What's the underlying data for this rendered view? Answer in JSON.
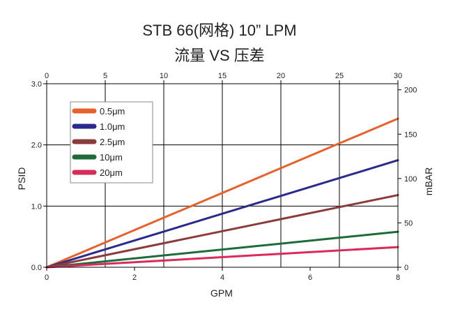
{
  "chart_data": {
    "type": "line",
    "title": "STB 66(网格)  10”   LPM",
    "subtitle": "流量 VS 压差",
    "xlabel": "GPM",
    "ylabel": "PSID",
    "y2label": "mBAR",
    "xlim": [
      0,
      8
    ],
    "ylim": [
      0,
      3
    ],
    "x2lim": [
      0,
      30
    ],
    "y2lim": [
      0,
      206.84
    ],
    "x_ticks": [
      0,
      2,
      4,
      6,
      8
    ],
    "x_tick_labels": [
      "0",
      "2",
      "4",
      "6",
      "8"
    ],
    "y_ticks": [
      0,
      1,
      2,
      3
    ],
    "y_tick_labels": [
      "0.0",
      "1.0",
      "2.0",
      "3.0"
    ],
    "x2_ticks": [
      0,
      5,
      10,
      15,
      20,
      25,
      30
    ],
    "x2_tick_labels": [
      "0",
      "5",
      "10",
      "15",
      "20",
      "25",
      "30"
    ],
    "y2_ticks": [
      0,
      50,
      100,
      150,
      200
    ],
    "y2_tick_labels": [
      "0",
      "50",
      "100",
      "150",
      "200"
    ],
    "grid": true,
    "legend_position": "top-left",
    "series": [
      {
        "name": "0.5μm",
        "color": "#e8612c",
        "x": [
          0,
          8
        ],
        "y": [
          0,
          2.43
        ]
      },
      {
        "name": "1.0μm",
        "color": "#2a2a8c",
        "x": [
          0,
          8
        ],
        "y": [
          0,
          1.75
        ]
      },
      {
        "name": "2.5μm",
        "color": "#8b3b3b",
        "x": [
          0,
          8
        ],
        "y": [
          0,
          1.18
        ]
      },
      {
        "name": "10μm",
        "color": "#1e6b3a",
        "x": [
          0,
          8
        ],
        "y": [
          0,
          0.58
        ]
      },
      {
        "name": "20μm",
        "color": "#d92a5c",
        "x": [
          0,
          8
        ],
        "y": [
          0,
          0.33
        ]
      }
    ]
  }
}
